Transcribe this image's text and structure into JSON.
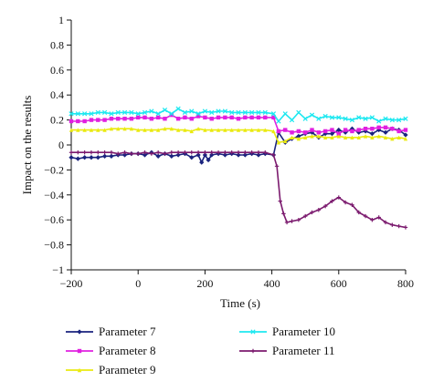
{
  "chart_data": {
    "type": "line",
    "xlabel": "Time (s)",
    "ylabel": "Impact on the results",
    "xlim": [
      -200,
      800
    ],
    "ylim": [
      -1,
      1
    ],
    "xticks": [
      "−200",
      "0",
      "200",
      "400",
      "600",
      "800"
    ],
    "xtick_values": [
      -200,
      0,
      200,
      400,
      600,
      800
    ],
    "yticks": [
      "1",
      "0.8",
      "0.6",
      "0.4",
      "0.2",
      "0",
      "−0.2",
      "−0.4",
      "−0.6",
      "−0.8",
      "−1"
    ],
    "ytick_values": [
      1,
      0.8,
      0.6,
      0.4,
      0.2,
      0,
      -0.2,
      -0.4,
      -0.6,
      -0.8,
      -1
    ],
    "grid": false,
    "legend_position": "bottom",
    "series": [
      {
        "name": "Parameter 7",
        "color": "#1a237e",
        "marker": "diamond",
        "x": [
          -200,
          -180,
          -160,
          -140,
          -120,
          -100,
          -80,
          -60,
          -40,
          -20,
          0,
          20,
          40,
          60,
          80,
          100,
          120,
          140,
          160,
          180,
          190,
          200,
          210,
          220,
          240,
          260,
          280,
          300,
          320,
          340,
          360,
          380,
          405,
          420,
          440,
          460,
          480,
          500,
          520,
          540,
          560,
          580,
          600,
          620,
          640,
          660,
          680,
          700,
          720,
          740,
          760,
          780,
          800
        ],
        "y": [
          -0.1,
          -0.11,
          -0.1,
          -0.1,
          -0.1,
          -0.09,
          -0.09,
          -0.08,
          -0.08,
          -0.07,
          -0.07,
          -0.08,
          -0.06,
          -0.09,
          -0.07,
          -0.09,
          -0.08,
          -0.07,
          -0.1,
          -0.08,
          -0.14,
          -0.08,
          -0.12,
          -0.08,
          -0.07,
          -0.08,
          -0.07,
          -0.08,
          -0.08,
          -0.07,
          -0.08,
          -0.07,
          -0.08,
          0.1,
          0.02,
          0.05,
          0.07,
          0.09,
          0.1,
          0.06,
          0.09,
          0.09,
          0.12,
          0.1,
          0.13,
          0.1,
          0.11,
          0.09,
          0.12,
          0.1,
          0.13,
          0.12,
          0.08
        ]
      },
      {
        "name": "Parameter 8",
        "color": "#e020e0",
        "marker": "square",
        "x": [
          -200,
          -180,
          -160,
          -140,
          -120,
          -100,
          -80,
          -60,
          -40,
          -20,
          0,
          20,
          40,
          60,
          80,
          100,
          120,
          140,
          160,
          180,
          200,
          220,
          240,
          260,
          280,
          300,
          320,
          340,
          360,
          380,
          405,
          420,
          440,
          460,
          480,
          500,
          520,
          540,
          560,
          580,
          600,
          620,
          640,
          660,
          680,
          700,
          720,
          740,
          760,
          780,
          800
        ],
        "y": [
          0.19,
          0.19,
          0.19,
          0.2,
          0.2,
          0.2,
          0.21,
          0.21,
          0.21,
          0.21,
          0.22,
          0.22,
          0.21,
          0.22,
          0.21,
          0.24,
          0.21,
          0.22,
          0.21,
          0.23,
          0.22,
          0.21,
          0.22,
          0.22,
          0.22,
          0.21,
          0.22,
          0.22,
          0.22,
          0.22,
          0.22,
          0.11,
          0.12,
          0.1,
          0.11,
          0.1,
          0.12,
          0.1,
          0.11,
          0.12,
          0.09,
          0.12,
          0.11,
          0.12,
          0.13,
          0.13,
          0.14,
          0.14,
          0.13,
          0.11,
          0.12
        ]
      },
      {
        "name": "Parameter 9",
        "color": "#eaea10",
        "marker": "triangle",
        "x": [
          -200,
          -180,
          -160,
          -140,
          -120,
          -100,
          -80,
          -60,
          -40,
          -20,
          0,
          20,
          40,
          60,
          80,
          100,
          120,
          140,
          160,
          180,
          200,
          220,
          240,
          260,
          280,
          300,
          320,
          340,
          360,
          380,
          405,
          420,
          440,
          460,
          480,
          500,
          520,
          540,
          560,
          580,
          600,
          620,
          640,
          660,
          680,
          700,
          720,
          740,
          760,
          780,
          800
        ],
        "y": [
          0.12,
          0.12,
          0.12,
          0.12,
          0.12,
          0.12,
          0.13,
          0.13,
          0.13,
          0.13,
          0.12,
          0.12,
          0.12,
          0.12,
          0.13,
          0.13,
          0.12,
          0.12,
          0.11,
          0.13,
          0.12,
          0.12,
          0.12,
          0.12,
          0.12,
          0.12,
          0.12,
          0.12,
          0.12,
          0.12,
          0.11,
          0.02,
          0.03,
          0.06,
          0.05,
          0.06,
          0.07,
          0.07,
          0.06,
          0.06,
          0.07,
          0.06,
          0.06,
          0.06,
          0.07,
          0.06,
          0.07,
          0.06,
          0.05,
          0.06,
          0.05
        ]
      },
      {
        "name": "Parameter 10",
        "color": "#1ee8f0",
        "marker": "x",
        "x": [
          -200,
          -180,
          -160,
          -140,
          -120,
          -100,
          -80,
          -60,
          -40,
          -20,
          0,
          20,
          40,
          60,
          80,
          100,
          120,
          140,
          160,
          180,
          200,
          220,
          240,
          260,
          280,
          300,
          320,
          340,
          360,
          380,
          405,
          420,
          440,
          460,
          480,
          500,
          520,
          540,
          560,
          580,
          600,
          620,
          640,
          660,
          680,
          700,
          720,
          740,
          760,
          780,
          800
        ],
        "y": [
          0.25,
          0.25,
          0.25,
          0.25,
          0.26,
          0.26,
          0.25,
          0.26,
          0.26,
          0.26,
          0.25,
          0.26,
          0.27,
          0.25,
          0.28,
          0.25,
          0.29,
          0.26,
          0.27,
          0.25,
          0.27,
          0.26,
          0.27,
          0.27,
          0.26,
          0.26,
          0.26,
          0.26,
          0.26,
          0.26,
          0.25,
          0.19,
          0.25,
          0.2,
          0.26,
          0.21,
          0.24,
          0.21,
          0.23,
          0.22,
          0.22,
          0.21,
          0.2,
          0.22,
          0.21,
          0.22,
          0.19,
          0.21,
          0.2,
          0.2,
          0.21
        ]
      },
      {
        "name": "Parameter 11",
        "color": "#7b1a6e",
        "marker": "cross",
        "x": [
          -200,
          -180,
          -160,
          -140,
          -120,
          -100,
          -80,
          -60,
          -40,
          -20,
          0,
          20,
          40,
          60,
          80,
          100,
          120,
          140,
          160,
          180,
          200,
          220,
          240,
          260,
          280,
          300,
          320,
          340,
          360,
          380,
          405,
          415,
          425,
          435,
          445,
          460,
          480,
          500,
          520,
          540,
          560,
          580,
          600,
          620,
          640,
          660,
          680,
          700,
          720,
          740,
          760,
          780,
          800
        ],
        "y": [
          -0.06,
          -0.06,
          -0.06,
          -0.06,
          -0.06,
          -0.06,
          -0.06,
          -0.07,
          -0.06,
          -0.07,
          -0.07,
          -0.06,
          -0.07,
          -0.06,
          -0.07,
          -0.06,
          -0.06,
          -0.06,
          -0.06,
          -0.06,
          -0.06,
          -0.06,
          -0.06,
          -0.06,
          -0.06,
          -0.06,
          -0.06,
          -0.06,
          -0.06,
          -0.06,
          -0.08,
          -0.17,
          -0.45,
          -0.55,
          -0.62,
          -0.61,
          -0.6,
          -0.57,
          -0.54,
          -0.52,
          -0.49,
          -0.45,
          -0.42,
          -0.46,
          -0.48,
          -0.54,
          -0.57,
          -0.6,
          -0.58,
          -0.62,
          -0.64,
          -0.65,
          -0.66
        ]
      }
    ]
  }
}
